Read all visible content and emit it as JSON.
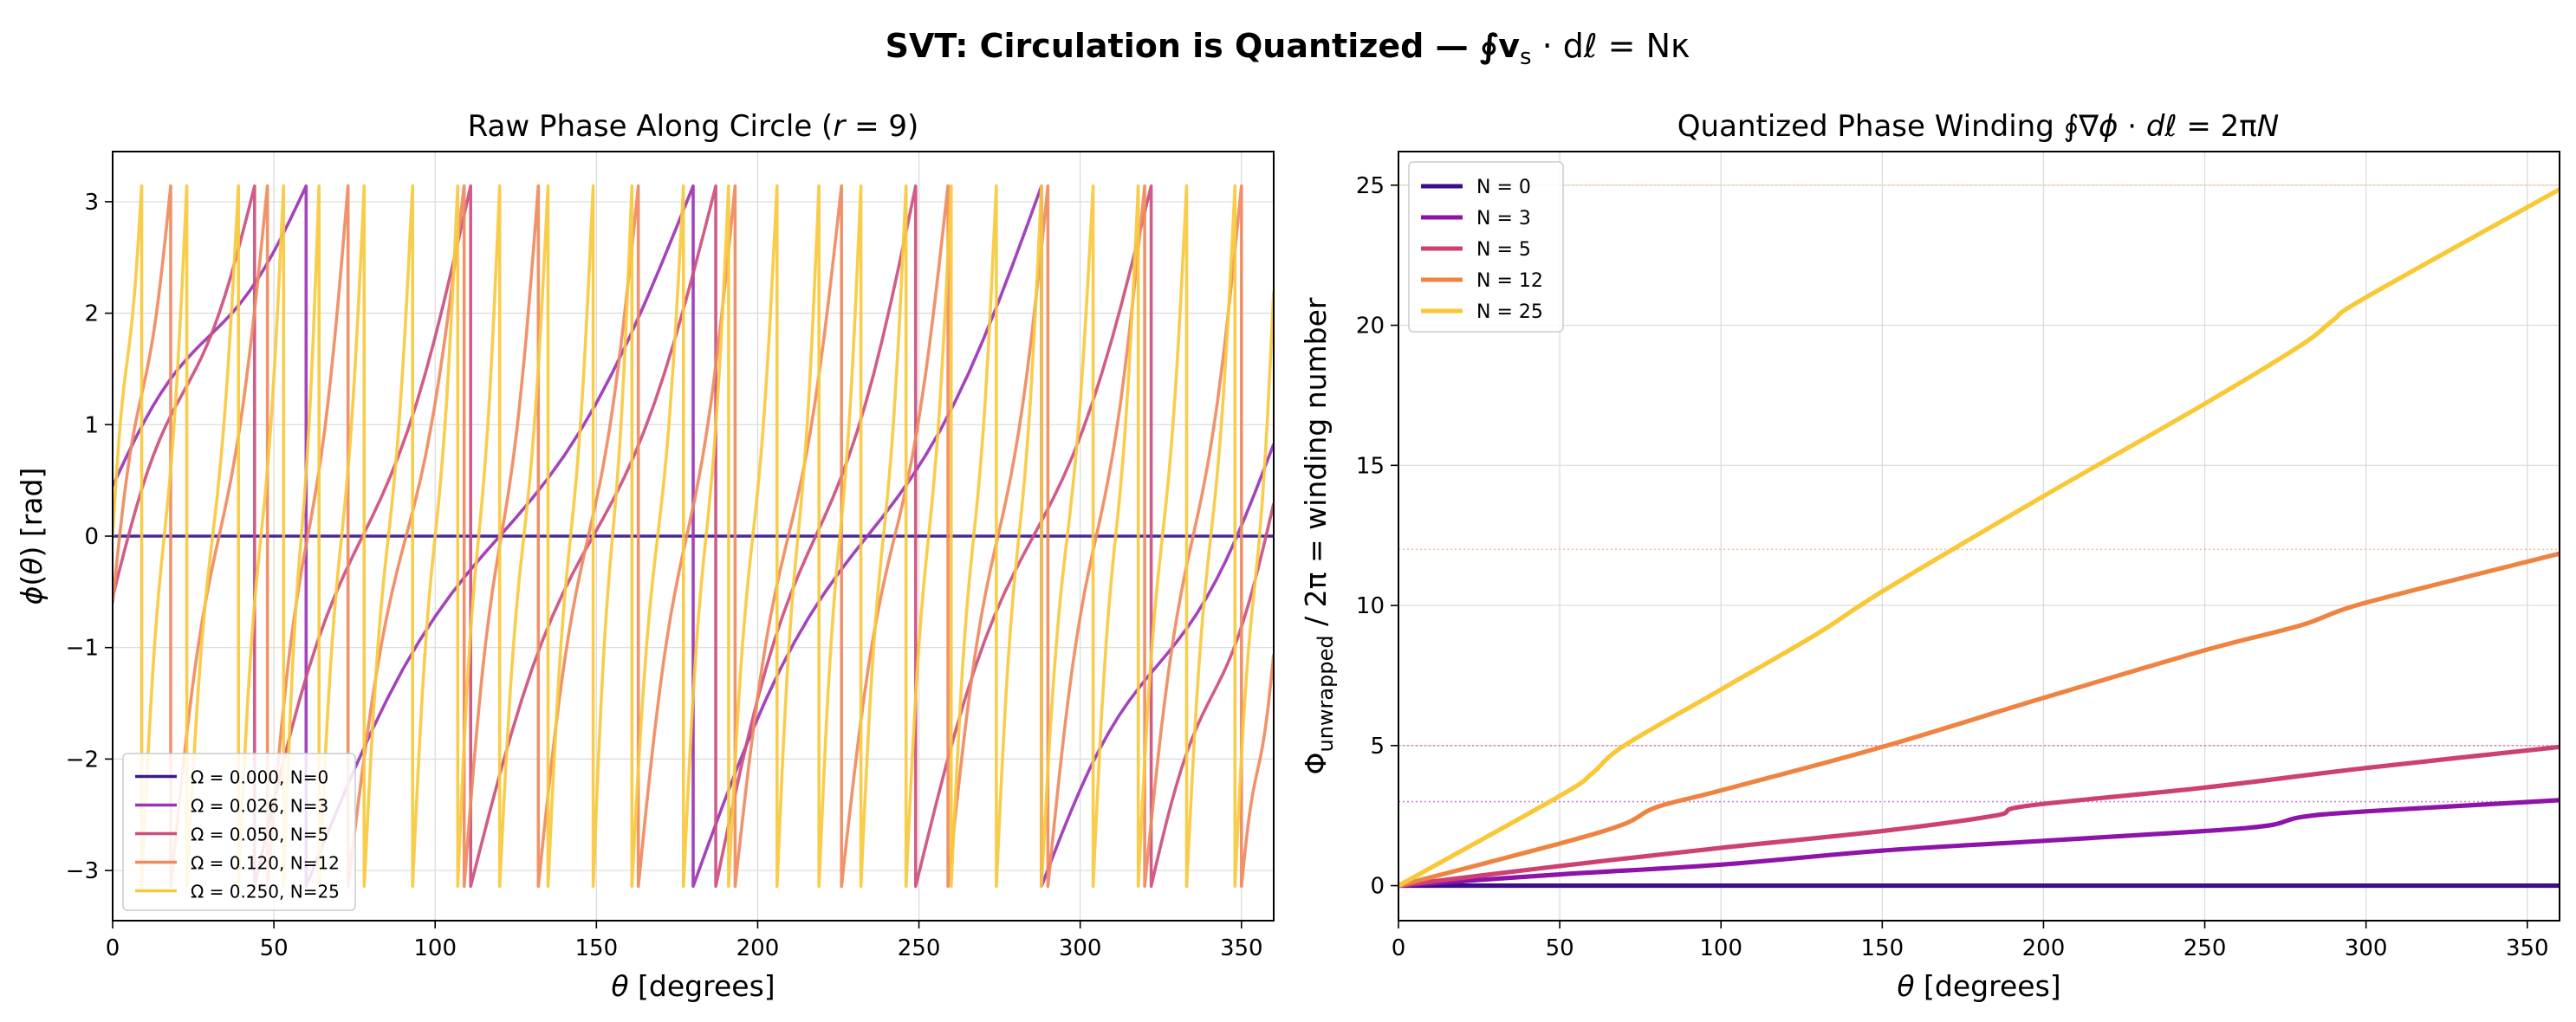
{
  "suptitle": "SVT: Circulation is Quantized  —  ∮v_s · dℓ = Nκ",
  "chart_data": [
    {
      "type": "line",
      "title": "Raw Phase Along Circle (r = 9)",
      "xlabel": "θ  [degrees]",
      "ylabel": "ϕ(θ)  [rad]",
      "xlim": [
        0,
        360
      ],
      "ylim": [
        -3.45,
        3.45
      ],
      "xticks": [
        0,
        50,
        100,
        150,
        200,
        250,
        300,
        350
      ],
      "yticks": [
        -3,
        -2,
        -1,
        0,
        1,
        2,
        3
      ],
      "ytick_labels": [
        "−3",
        "−2",
        "−1",
        "0",
        "1",
        "2",
        "3"
      ],
      "grid": true,
      "legend_position": "lower-left",
      "series": [
        {
          "name": "Ω = 0.000, N=0",
          "color": "#3b1a8f",
          "winding": 0,
          "phase0": 0.0,
          "wraps": "none",
          "wrap_x": []
        },
        {
          "name": "Ω = 0.026, N=3",
          "color": "#9b34b4",
          "winding": 3,
          "phase0": 0.45,
          "wraps": "sawtooth-down",
          "wrap_x": [
            60,
            180,
            288
          ]
        },
        {
          "name": "Ω = 0.050, N=5",
          "color": "#cc4f7f",
          "winding": 5,
          "phase0": -0.55,
          "wraps": "sawtooth-down",
          "wrap_x": [
            44,
            111,
            187,
            249,
            322
          ]
        },
        {
          "name": "Ω = 0.120, N=12",
          "color": "#ef8a5e",
          "winding": 12,
          "phase0": -0.6,
          "wraps": "sawtooth-down",
          "wrap_x": [
            18,
            48,
            73,
            109,
            132,
            163,
            193,
            226,
            259,
            290,
            320,
            350
          ]
        },
        {
          "name": "Ω = 0.250, N=25",
          "color": "#f8c93d",
          "winding": 25,
          "phase0": 0.0,
          "wraps": "sawtooth-down",
          "wrap_x": [
            9,
            23,
            39,
            53,
            64,
            78,
            93,
            107,
            120,
            135,
            149,
            161,
            177,
            191,
            206,
            219,
            232,
            246,
            260,
            274,
            288,
            304,
            318,
            333,
            348
          ]
        }
      ]
    },
    {
      "type": "line",
      "title": "Quantized Phase Winding  ∮∇ϕ · dℓ = 2πN",
      "xlabel": "θ  [degrees]",
      "ylabel": "Φ_unwrapped / 2π  =  winding number",
      "xlim": [
        0,
        360
      ],
      "ylim": [
        -1.25,
        26.2
      ],
      "xticks": [
        0,
        50,
        100,
        150,
        200,
        250,
        300,
        350
      ],
      "yticks": [
        0,
        5,
        10,
        15,
        20,
        25
      ],
      "grid": true,
      "legend_position": "upper-left",
      "reference_lines": [
        {
          "y": 3,
          "color": "#9b34b4"
        },
        {
          "y": 5,
          "color": "#cc4f7f"
        },
        {
          "y": 12,
          "color": "#ef8a5e"
        },
        {
          "y": 25,
          "color": "#f8c93d"
        }
      ],
      "series": [
        {
          "name": "N = 0",
          "color": "#3b0f8c",
          "x": [
            0,
            360
          ],
          "y": [
            0,
            0
          ]
        },
        {
          "name": "N = 3",
          "color": "#8e13a8",
          "x": [
            0,
            50,
            100,
            150,
            200,
            250,
            270,
            280,
            300,
            360
          ],
          "y": [
            0,
            0.4,
            0.75,
            1.25,
            1.6,
            1.95,
            2.15,
            2.45,
            2.65,
            3.05
          ]
        },
        {
          "name": "N = 5",
          "color": "#cc4172",
          "x": [
            0,
            50,
            100,
            150,
            185,
            195,
            250,
            300,
            360
          ],
          "y": [
            0,
            0.7,
            1.35,
            1.95,
            2.5,
            2.85,
            3.5,
            4.2,
            4.95
          ]
        },
        {
          "name": "N = 12",
          "color": "#ee8342",
          "x": [
            0,
            50,
            70,
            80,
            100,
            150,
            200,
            250,
            280,
            300,
            360
          ],
          "y": [
            0,
            1.5,
            2.2,
            2.8,
            3.4,
            4.95,
            6.7,
            8.4,
            9.3,
            10.1,
            11.85
          ]
        },
        {
          "name": "N = 25",
          "color": "#f8c836",
          "x": [
            0,
            50,
            60,
            70,
            100,
            130,
            150,
            200,
            250,
            280,
            290,
            300,
            360
          ],
          "y": [
            0,
            3.2,
            4.0,
            5.0,
            7.0,
            9.0,
            10.5,
            13.9,
            17.2,
            19.3,
            20.2,
            21.0,
            24.85
          ]
        }
      ]
    }
  ]
}
